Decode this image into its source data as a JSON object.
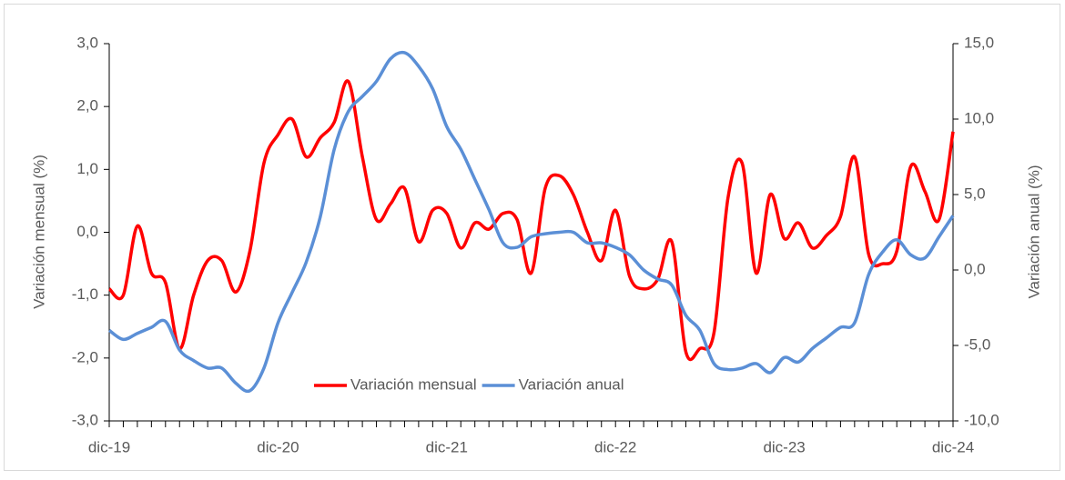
{
  "chart_data": {
    "type": "line",
    "categories": [
      "dic-19",
      null,
      null,
      null,
      null,
      null,
      null,
      null,
      null,
      null,
      null,
      null,
      "dic-20",
      null,
      null,
      null,
      null,
      null,
      null,
      null,
      null,
      null,
      null,
      null,
      "dic-21",
      null,
      null,
      null,
      null,
      null,
      null,
      null,
      null,
      null,
      null,
      null,
      "dic-22",
      null,
      null,
      null,
      null,
      null,
      null,
      null,
      null,
      null,
      null,
      null,
      "dic-23",
      null,
      null,
      null,
      null,
      null,
      null,
      null,
      null,
      null,
      null,
      null,
      "dic-24"
    ],
    "series": [
      {
        "name": "Variación mensual",
        "color": "#ff0000",
        "axis": "y",
        "values": [
          -0.9,
          -1.0,
          0.1,
          -0.65,
          -0.8,
          -1.85,
          -1.0,
          -0.45,
          -0.45,
          -0.95,
          -0.3,
          1.1,
          1.55,
          1.8,
          1.2,
          1.5,
          1.75,
          2.4,
          1.2,
          0.2,
          0.45,
          0.7,
          -0.15,
          0.35,
          0.3,
          -0.25,
          0.15,
          0.05,
          0.3,
          0.2,
          -0.65,
          0.7,
          0.9,
          0.6,
          0.0,
          -0.45,
          0.35,
          -0.7,
          -0.9,
          -0.75,
          -0.15,
          -1.9,
          -1.85,
          -1.6,
          0.55,
          1.1,
          -0.65,
          0.6,
          -0.1,
          0.15,
          -0.25,
          -0.05,
          0.25,
          1.2,
          -0.35,
          -0.5,
          -0.3,
          1.05,
          0.65,
          0.2,
          1.6
        ]
      },
      {
        "name": "Variación anual",
        "color": "#5b8fd6",
        "axis": "y2",
        "values": [
          -4.0,
          -4.6,
          -4.2,
          -3.8,
          -3.4,
          -5.3,
          -6.0,
          -6.5,
          -6.5,
          -7.5,
          -8.0,
          -6.5,
          -3.5,
          -1.5,
          0.5,
          3.5,
          8.0,
          10.5,
          11.5,
          12.5,
          14.0,
          14.4,
          13.5,
          12.0,
          9.5,
          8.0,
          6.0,
          4.0,
          1.8,
          1.5,
          2.2,
          2.4,
          2.5,
          2.5,
          1.8,
          1.8,
          1.5,
          1.0,
          0.0,
          -0.6,
          -1.0,
          -3.0,
          -4.0,
          -6.2,
          -6.6,
          -6.5,
          -6.2,
          -6.8,
          -5.8,
          -6.1,
          -5.2,
          -4.5,
          -3.8,
          -3.5,
          -0.3,
          1.2,
          2.0,
          1.0,
          0.8,
          2.2,
          3.6
        ]
      }
    ],
    "ylim": [
      -3,
      3
    ],
    "yticks": [
      {
        "value": -3,
        "label": "-3,0"
      },
      {
        "value": -2,
        "label": "-2,0"
      },
      {
        "value": -1,
        "label": "-1,0"
      },
      {
        "value": 0,
        "label": "0,0"
      },
      {
        "value": 1,
        "label": "1,0"
      },
      {
        "value": 2,
        "label": "2,0"
      },
      {
        "value": 3,
        "label": "3,0"
      }
    ],
    "y2lim": [
      -10,
      15
    ],
    "y2ticks": [
      {
        "value": -10,
        "label": "-10,0"
      },
      {
        "value": -5,
        "label": "-5,0"
      },
      {
        "value": 0,
        "label": "0,0"
      },
      {
        "value": 5,
        "label": "5,0"
      },
      {
        "value": 10,
        "label": "10,0"
      },
      {
        "value": 15,
        "label": "15,0"
      }
    ],
    "ylabel": "Variación mensual (%)",
    "y2label": "Variación anual (%)",
    "grid": false
  }
}
